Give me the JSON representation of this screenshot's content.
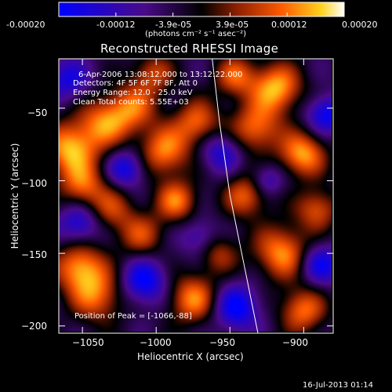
{
  "colorbar": {
    "tick_labels": [
      "-0.00020",
      "-0.00012",
      "-3.9e-05",
      "3.9e-05",
      "0.00012",
      "0.00020"
    ],
    "units": "(photons cm⁻² s⁻¹ asec⁻²)",
    "colors": {
      "min": "#0000ff",
      "mid_low": "#4a0a8a",
      "mid": "#000000",
      "mid_high": "#8a1e00",
      "high_1": "#ff5a00",
      "high_2": "#ffd21e",
      "max": "#ffffff"
    }
  },
  "annotations": {
    "time_range": "6-Apr-2006 13:08:12.000 to 13:12:22.000",
    "detectors": "Detectors: 4F 5F 6F 7F 8F, Att 0",
    "energy": "Energy Range: 12.0 - 25.0 keV",
    "method": "Clean     Total counts: 5.55E+03",
    "peak": "Position of Peak = [-1066,-88]"
  },
  "timestamp": "16-Jul-2013 01:14",
  "chart_data": {
    "type": "heatmap",
    "title": "Reconstructed RHESSI Image",
    "xlabel": "Heliocentric X (arcsec)",
    "ylabel": "Heliocentric Y (arcsec)",
    "xlim": [
      -1066,
      -880
    ],
    "ylim": [
      -205,
      -16
    ],
    "x_ticks": [
      -1050,
      -1000,
      -950,
      -900
    ],
    "y_ticks": [
      -50,
      -100,
      -150,
      -200
    ],
    "x_tick_labels": [
      "−1050",
      "−1000",
      "−950",
      "−900"
    ],
    "y_tick_labels": [
      "−50",
      "−100",
      "−150",
      "−200"
    ],
    "colorbar_range": [
      -0.0002,
      0.0002
    ],
    "limb_curve": {
      "x": [
        -962,
        -957,
        -950,
        -940,
        -931
      ],
      "y": [
        -16,
        -60,
        -110,
        -160,
        -205
      ]
    },
    "blobs": [
      {
        "x": -1058,
        "y": -78,
        "v": 1.0,
        "r": 13
      },
      {
        "x": -1050,
        "y": -104,
        "v": 0.7,
        "r": 11
      },
      {
        "x": -1035,
        "y": -60,
        "v": 0.75,
        "r": 12
      },
      {
        "x": -1030,
        "y": -120,
        "v": 0.55,
        "r": 11
      },
      {
        "x": -1016,
        "y": -50,
        "v": 0.7,
        "r": 12
      },
      {
        "x": -1010,
        "y": -138,
        "v": 0.6,
        "r": 11
      },
      {
        "x": -1002,
        "y": -26,
        "v": 0.6,
        "r": 10
      },
      {
        "x": -994,
        "y": -80,
        "v": 0.85,
        "r": 12
      },
      {
        "x": -986,
        "y": -114,
        "v": 0.8,
        "r": 10
      },
      {
        "x": -972,
        "y": -60,
        "v": 0.75,
        "r": 11
      },
      {
        "x": -975,
        "y": -182,
        "v": 0.85,
        "r": 12
      },
      {
        "x": -1040,
        "y": -180,
        "v": 0.75,
        "r": 13
      },
      {
        "x": -1052,
        "y": -160,
        "v": 0.9,
        "r": 12
      },
      {
        "x": -946,
        "y": -28,
        "v": 0.7,
        "r": 10
      },
      {
        "x": -932,
        "y": -64,
        "v": 0.8,
        "r": 12
      },
      {
        "x": -938,
        "y": -110,
        "v": 0.75,
        "r": 11
      },
      {
        "x": -918,
        "y": -36,
        "v": 1.0,
        "r": 12
      },
      {
        "x": -900,
        "y": -82,
        "v": 0.95,
        "r": 11
      },
      {
        "x": -914,
        "y": -150,
        "v": 0.9,
        "r": 13
      },
      {
        "x": -890,
        "y": -120,
        "v": 0.7,
        "r": 10
      },
      {
        "x": -900,
        "y": -190,
        "v": 0.8,
        "r": 11
      },
      {
        "x": -958,
        "y": -150,
        "v": 0.55,
        "r": 10
      },
      {
        "x": -1020,
        "y": -92,
        "v": -0.7,
        "r": 9
      },
      {
        "x": -1008,
        "y": -170,
        "v": -0.8,
        "r": 11
      },
      {
        "x": -1052,
        "y": -130,
        "v": -0.65,
        "r": 10
      },
      {
        "x": -955,
        "y": -80,
        "v": -0.6,
        "r": 10
      },
      {
        "x": -945,
        "y": -188,
        "v": -0.8,
        "r": 11
      },
      {
        "x": -888,
        "y": -158,
        "v": -0.7,
        "r": 10
      },
      {
        "x": -884,
        "y": -54,
        "v": -0.75,
        "r": 9
      },
      {
        "x": -1060,
        "y": -30,
        "v": -0.6,
        "r": 10
      },
      {
        "x": -925,
        "y": -100,
        "v": -0.55,
        "r": 8
      },
      {
        "x": -970,
        "y": -140,
        "v": -0.5,
        "r": 9
      }
    ]
  }
}
